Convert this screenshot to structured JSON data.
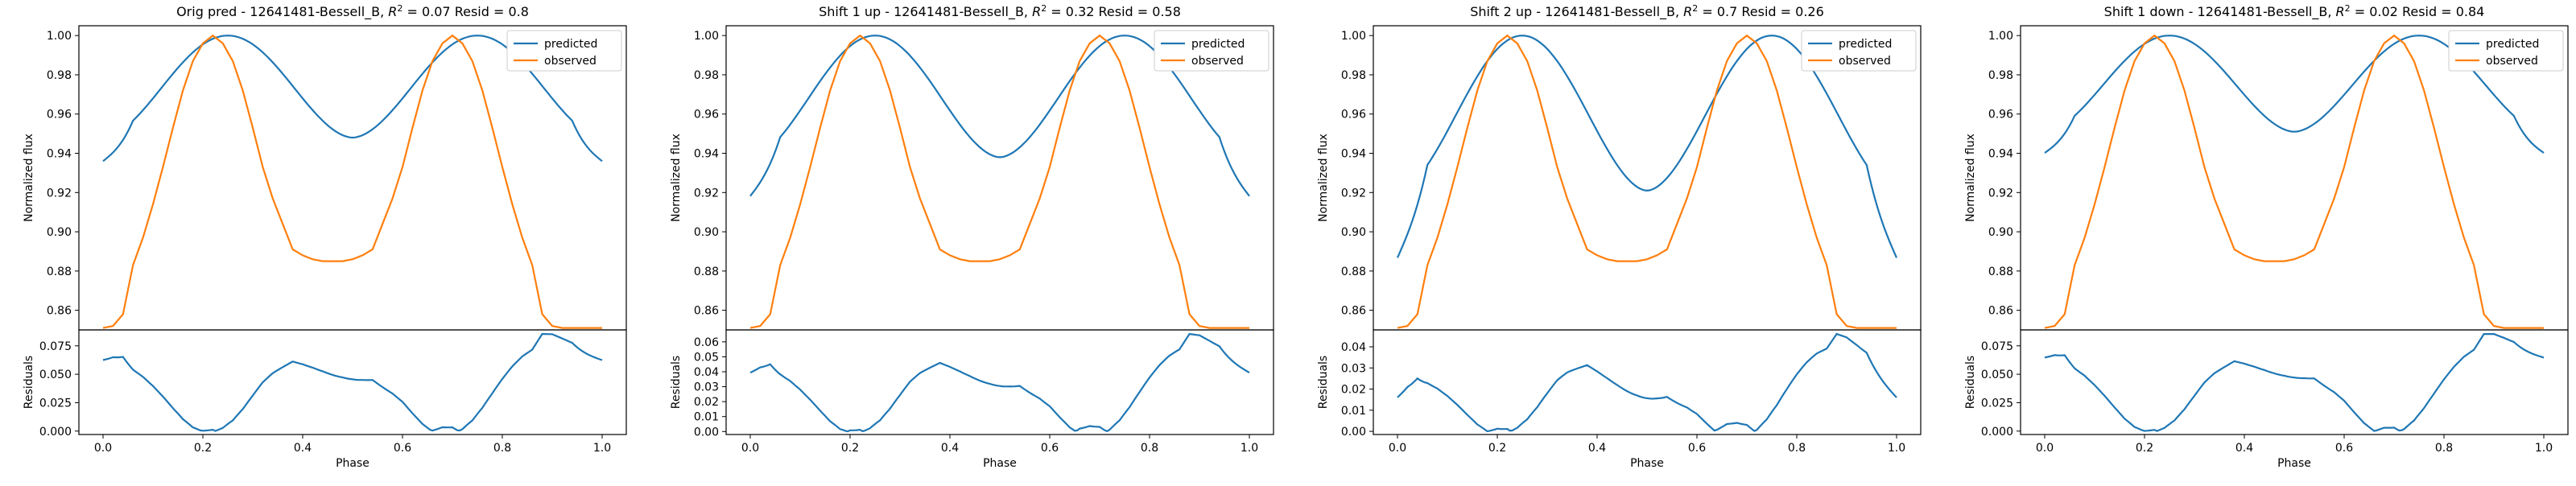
{
  "colors": {
    "predicted": "#1f77b4",
    "observed": "#ff7f0e",
    "axes": "#000000"
  },
  "chart_data": [
    {
      "type": "line",
      "title_prefix": "Orig pred - 12641481-Bessell_B, ",
      "r2_label": "R",
      "r2_sup": "2",
      "title_suffix": " = 0.07 Resid = 0.8",
      "top": {
        "ylabel": "Normalized flux",
        "ylim": [
          0.85,
          1.005
        ],
        "yticks": [
          0.86,
          0.88,
          0.9,
          0.92,
          0.94,
          0.96,
          0.98,
          1.0
        ],
        "ytick_labels": [
          "0.86",
          "0.88",
          "0.90",
          "0.92",
          "0.94",
          "0.96",
          "0.98",
          "1.00"
        ],
        "legend": [
          "predicted",
          "observed"
        ],
        "legend_position": "top-right",
        "min_value": 0.948,
        "offset": 0.0
      },
      "bottom": {
        "ylabel": "Residuals",
        "xlabel": "Phase",
        "ylim": [
          -0.003,
          0.089
        ],
        "yticks": [
          0.0,
          0.025,
          0.05,
          0.075
        ],
        "ytick_labels": [
          "0.000",
          "0.025",
          "0.050",
          "0.075"
        ],
        "xticks": [
          0.0,
          0.2,
          0.4,
          0.6,
          0.8,
          1.0
        ],
        "xtick_labels": [
          "0.0",
          "0.2",
          "0.4",
          "0.6",
          "0.8",
          "1.0"
        ]
      }
    },
    {
      "type": "line",
      "title_prefix": "Shift 1 up - 12641481-Bessell_B, ",
      "r2_label": "R",
      "r2_sup": "2",
      "title_suffix": " = 0.32 Resid = 0.58",
      "top": {
        "ylabel": "Normalized flux",
        "ylim": [
          0.85,
          1.005
        ],
        "yticks": [
          0.86,
          0.88,
          0.9,
          0.92,
          0.94,
          0.96,
          0.98,
          1.0
        ],
        "ytick_labels": [
          "0.86",
          "0.88",
          "0.90",
          "0.92",
          "0.94",
          "0.96",
          "0.98",
          "1.00"
        ],
        "legend": [
          "predicted",
          "observed"
        ],
        "legend_position": "top-right",
        "min_value": 0.938,
        "offset": -0.013
      },
      "bottom": {
        "ylabel": "Residuals",
        "xlabel": "Phase",
        "ylim": [
          -0.002,
          0.068
        ],
        "yticks": [
          0.0,
          0.01,
          0.02,
          0.03,
          0.04,
          0.05,
          0.06
        ],
        "ytick_labels": [
          "0.00",
          "0.01",
          "0.02",
          "0.03",
          "0.04",
          "0.05",
          "0.06"
        ],
        "xticks": [
          0.0,
          0.2,
          0.4,
          0.6,
          0.8,
          1.0
        ],
        "xtick_labels": [
          "0.0",
          "0.2",
          "0.4",
          "0.6",
          "0.8",
          "1.0"
        ]
      }
    },
    {
      "type": "line",
      "title_prefix": "Shift 2 up - 12641481-Bessell_B, ",
      "r2_label": "R",
      "r2_sup": "2",
      "title_suffix": " = 0.7 Resid = 0.26",
      "top": {
        "ylabel": "Normalized flux",
        "ylim": [
          0.85,
          1.005
        ],
        "yticks": [
          0.86,
          0.88,
          0.9,
          0.92,
          0.94,
          0.96,
          0.98,
          1.0
        ],
        "ytick_labels": [
          "0.86",
          "0.88",
          "0.90",
          "0.92",
          "0.94",
          "0.96",
          "0.98",
          "1.00"
        ],
        "legend": [
          "predicted",
          "observed"
        ],
        "legend_position": "top-right",
        "min_value": 0.921,
        "offset": -0.037
      },
      "bottom": {
        "ylabel": "Residuals",
        "xlabel": "Phase",
        "ylim": [
          -0.0015,
          0.048
        ],
        "yticks": [
          0.0,
          0.01,
          0.02,
          0.03,
          0.04
        ],
        "ytick_labels": [
          "0.00",
          "0.01",
          "0.02",
          "0.03",
          "0.04"
        ],
        "xticks": [
          0.0,
          0.2,
          0.4,
          0.6,
          0.8,
          1.0
        ],
        "xtick_labels": [
          "0.0",
          "0.2",
          "0.4",
          "0.6",
          "0.8",
          "1.0"
        ]
      }
    },
    {
      "type": "line",
      "title_prefix": "Shift 1 down - 12641481-Bessell_B, ",
      "r2_label": "R",
      "r2_sup": "2",
      "title_suffix": " = 0.02 Resid = 0.84",
      "top": {
        "ylabel": "Normalized flux",
        "ylim": [
          0.85,
          1.005
        ],
        "yticks": [
          0.86,
          0.88,
          0.9,
          0.92,
          0.94,
          0.96,
          0.98,
          1.0
        ],
        "ytick_labels": [
          "0.86",
          "0.88",
          "0.90",
          "0.92",
          "0.94",
          "0.96",
          "0.98",
          "1.00"
        ],
        "legend": [
          "predicted",
          "observed"
        ],
        "legend_position": "top-right",
        "min_value": 0.951,
        "offset": 0.002
      },
      "bottom": {
        "ylabel": "Residuals",
        "xlabel": "Phase",
        "ylim": [
          -0.003,
          0.089
        ],
        "yticks": [
          0.0,
          0.025,
          0.05,
          0.075
        ],
        "ytick_labels": [
          "0.000",
          "0.025",
          "0.050",
          "0.075"
        ],
        "xticks": [
          0.0,
          0.2,
          0.4,
          0.6,
          0.8,
          1.0
        ],
        "xtick_labels": [
          "0.0",
          "0.2",
          "0.4",
          "0.6",
          "0.8",
          "1.0"
        ]
      }
    }
  ],
  "observed_curve": {
    "x": [
      0.0,
      0.02,
      0.04,
      0.06,
      0.08,
      0.1,
      0.12,
      0.14,
      0.16,
      0.18,
      0.2,
      0.22,
      0.24,
      0.26,
      0.28,
      0.3,
      0.32,
      0.34,
      0.36,
      0.38,
      0.4,
      0.42,
      0.44,
      0.46,
      0.48,
      0.5,
      0.52,
      0.54,
      0.56,
      0.58,
      0.6,
      0.62,
      0.64,
      0.66,
      0.68,
      0.7,
      0.72,
      0.74,
      0.76,
      0.78,
      0.8,
      0.82,
      0.84,
      0.86,
      0.88,
      0.9,
      0.92,
      0.94,
      0.96,
      0.98,
      1.0
    ],
    "y": [
      0.851,
      0.852,
      0.858,
      0.883,
      0.897,
      0.914,
      0.933,
      0.953,
      0.972,
      0.987,
      0.996,
      1.0,
      0.996,
      0.987,
      0.972,
      0.953,
      0.933,
      0.917,
      0.904,
      0.891,
      0.888,
      0.886,
      0.885,
      0.885,
      0.885,
      0.886,
      0.888,
      0.891,
      0.904,
      0.917,
      0.933,
      0.953,
      0.972,
      0.987,
      0.996,
      1.0,
      0.996,
      0.987,
      0.972,
      0.953,
      0.933,
      0.914,
      0.897,
      0.883,
      0.858,
      0.852,
      0.851,
      0.851,
      0.851,
      0.851,
      0.851
    ]
  }
}
